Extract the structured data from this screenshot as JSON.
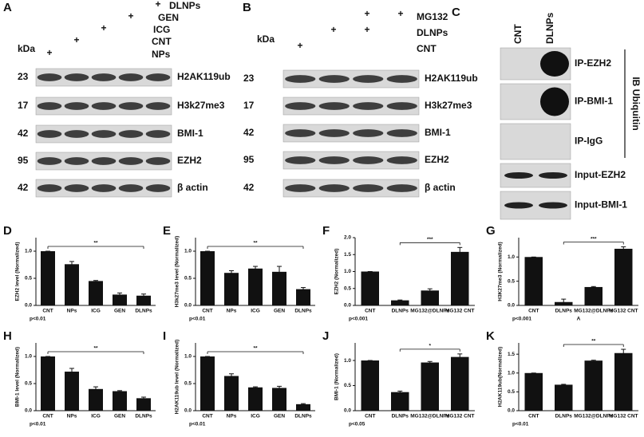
{
  "panels": {
    "A": {
      "label": "A",
      "kda": "kDa",
      "plus": "+",
      "treatments": [
        "DLNPs",
        "GEN",
        "ICG",
        "CNT",
        "NPs"
      ],
      "mw": [
        "23",
        "17",
        "42",
        "95",
        "42"
      ],
      "proteins": [
        "H2AK119ub",
        "H3k27me3",
        "BMI-1",
        "EZH2",
        "β actin"
      ]
    },
    "B": {
      "label": "B",
      "kda": "kDa",
      "plus": "+",
      "treatments": [
        "MG132",
        "DLNPs",
        "CNT"
      ],
      "mw": [
        "23",
        "17",
        "42",
        "95",
        "42"
      ],
      "proteins": [
        "H2AK119ub",
        "H3k27me3",
        "BMI-1",
        "EZH2",
        "β actin"
      ]
    },
    "C": {
      "label": "C",
      "columns": [
        "CNT",
        "DLNPs"
      ],
      "rows": [
        "IP-EZH2",
        "IP-BMI-1",
        "IP-IgG",
        "Input-EZH2",
        "Input-BMI-1"
      ],
      "side_label": "IB Ubiquitin"
    }
  },
  "chart_data": [
    {
      "type": "bar",
      "panel": "D",
      "ylabel": "EZH2 level (Normalized)",
      "categories": [
        "CNT",
        "NPs",
        "ICG",
        "GEN",
        "DLNPs"
      ],
      "values": [
        1.0,
        0.76,
        0.45,
        0.2,
        0.18
      ],
      "errors": [
        0,
        0.05,
        0.01,
        0.03,
        0.03
      ],
      "ylim": [
        0,
        1.25
      ],
      "yticks": [
        {
          "value": 0,
          "label": "0.0"
        },
        0.5,
        {
          "value": 1,
          "label": "1.0"
        }
      ],
      "annotation": "**",
      "note": "p<0.01",
      "color": "#111111"
    },
    {
      "type": "bar",
      "panel": "E",
      "ylabel": "H3k27me3 level (Normalized)",
      "categories": [
        "CNT",
        "NPs",
        "ICG",
        "GEN",
        "DLNPs"
      ],
      "values": [
        1.0,
        0.6,
        0.68,
        0.62,
        0.3
      ],
      "errors": [
        0,
        0.04,
        0.04,
        0.1,
        0.03
      ],
      "ylim": [
        0,
        1.25
      ],
      "yticks": [
        {
          "value": 0,
          "label": "0.0"
        },
        0.5,
        {
          "value": 1,
          "label": "1.0"
        }
      ],
      "annotation": "**",
      "note": "p<0.01",
      "color": "#111111"
    },
    {
      "type": "bar",
      "panel": "F",
      "ylabel": "EZH2 (Normalized)",
      "categories": [
        "CNT",
        "DLNPs",
        "MG132@DLNPs",
        "MG132 CNT"
      ],
      "values": [
        1.0,
        0.15,
        0.44,
        1.58
      ],
      "errors": [
        0,
        0.01,
        0.05,
        0.13
      ],
      "ylim": [
        0,
        2.0
      ],
      "yticks": [
        {
          "value": 0,
          "label": "0.0"
        },
        0.5,
        {
          "value": 1,
          "label": "1.0"
        },
        1.5,
        {
          "value": 2,
          "label": "2.0"
        }
      ],
      "annotation": "***",
      "note": "p<0.001",
      "color": "#111111"
    },
    {
      "type": "bar",
      "panel": "G",
      "ylabel": "H3K27me3 (Normalized)",
      "categories": [
        "CNT",
        "DLNPs",
        "MG132@DLNPs",
        "MG132 CNT"
      ],
      "values": [
        1.0,
        0.07,
        0.38,
        1.17
      ],
      "errors": [
        0,
        0.06,
        0.01,
        0.04
      ],
      "ylim": [
        0,
        1.4
      ],
      "yticks": [
        {
          "value": 0,
          "label": "0.0"
        },
        0.5,
        {
          "value": 1,
          "label": "1.0"
        }
      ],
      "annotation": "***",
      "note": "p<0.001",
      "footnote": "A",
      "color": "#111111"
    },
    {
      "type": "bar",
      "panel": "H",
      "ylabel": "BMI-1 level (Normalized)",
      "categories": [
        "CNT",
        "NPs",
        "ICG",
        "GEN",
        "DLNPs"
      ],
      "values": [
        1.0,
        0.72,
        0.4,
        0.36,
        0.23
      ],
      "errors": [
        0,
        0.06,
        0.04,
        0.01,
        0.02
      ],
      "ylim": [
        0,
        1.25
      ],
      "yticks": [
        {
          "value": 0,
          "label": "0.0"
        },
        0.5,
        {
          "value": 1,
          "label": "1.0"
        }
      ],
      "annotation": "**",
      "note": "p<0.01",
      "color": "#111111"
    },
    {
      "type": "bar",
      "panel": "I",
      "ylabel": "H2AK119ub level (Normalized)",
      "categories": [
        "CNT",
        "NPs",
        "ICG",
        "GEN",
        "DLNPs"
      ],
      "values": [
        1.0,
        0.64,
        0.43,
        0.42,
        0.12
      ],
      "errors": [
        0,
        0.04,
        0.01,
        0.03,
        0.01
      ],
      "ylim": [
        0,
        1.25
      ],
      "yticks": [
        {
          "value": 0,
          "label": "0.0"
        },
        0.5,
        {
          "value": 1,
          "label": "1.0"
        }
      ],
      "annotation": "**",
      "note": "p<0.01",
      "color": "#111111"
    },
    {
      "type": "bar",
      "panel": "J",
      "ylabel": "BMI-1 (Normalized)",
      "categories": [
        "CNT",
        "DLNPs",
        "MG132@DLNPs",
        "MG132 CNT"
      ],
      "values": [
        1.0,
        0.37,
        0.96,
        1.07
      ],
      "errors": [
        0,
        0.02,
        0.02,
        0.06
      ],
      "ylim": [
        0,
        1.35
      ],
      "yticks": [
        {
          "value": 0,
          "label": "0.0"
        },
        0.5,
        {
          "value": 1,
          "label": "1.0"
        }
      ],
      "annotation": "*",
      "note": "p<0.05",
      "color": "#111111"
    },
    {
      "type": "bar",
      "panel": "K",
      "ylabel": "H2AK119ub(Normalized)",
      "categories": [
        "CNT",
        "DLNPs",
        "MG132@DLNPs",
        "MG132 CNT"
      ],
      "values": [
        1.0,
        0.69,
        1.33,
        1.53
      ],
      "errors": [
        0,
        0.01,
        0.01,
        0.1
      ],
      "ylim": [
        0,
        1.8
      ],
      "yticks": [
        {
          "value": 0,
          "label": "0.0"
        },
        0.5,
        {
          "value": 1,
          "label": "1.0"
        },
        1.5
      ],
      "annotation": "**",
      "note": "p<0.01",
      "color": "#111111"
    }
  ]
}
